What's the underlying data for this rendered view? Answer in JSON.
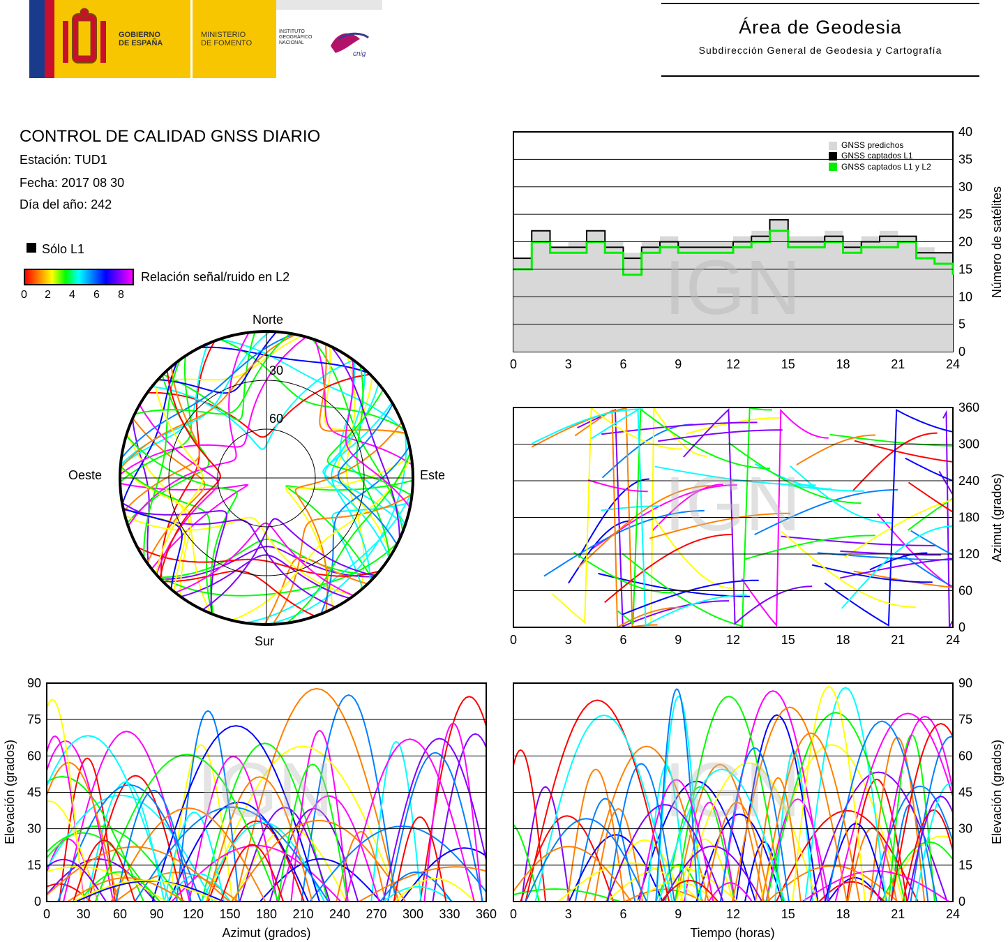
{
  "header": {
    "logo_gobierno": "GOBIERNO\nDE ESPAÑA",
    "logo_ministerio": "MINISTERIO\nDE FOMENTO",
    "logo_instituto": "INSTITUTO\nGEOGRÁFICO\nNACIONAL",
    "logo_cnig": "cnig",
    "area_title": "Área de Geodesia",
    "area_subtitle": "Subdirección General de Geodesia y Cartografía"
  },
  "info": {
    "title": "CONTROL DE CALIDAD GNSS DIARIO",
    "station": "Estación: TUD1",
    "date": "Fecha: 2017 08 30",
    "doy": "Día del año: 242",
    "legend_l1": "Sólo L1",
    "legend_snr": "Relación señal/ruido en L2",
    "snr_ticks": [
      "0",
      "2",
      "4",
      "6",
      "8"
    ]
  },
  "colors": {
    "predicted": "#d8d8d8",
    "l1": "#000000",
    "l1l2": "#00ee00",
    "snr_scale": [
      "#ff0000",
      "#ff8000",
      "#ffff00",
      "#00ff00",
      "#00ffff",
      "#0080ff",
      "#0000ff",
      "#8000ff",
      "#ff00ff"
    ]
  },
  "watermark": "IGN",
  "chart_data": [
    {
      "type": "area",
      "id": "satellites",
      "xlabel": "",
      "ylabel": "Número de satélites",
      "xlim": [
        0,
        24
      ],
      "ylim": [
        0,
        40
      ],
      "x_ticks": [
        "0",
        "3",
        "6",
        "9",
        "12",
        "15",
        "18",
        "21",
        "24"
      ],
      "y_ticks": [
        "0",
        "5",
        "10",
        "15",
        "20",
        "25",
        "30",
        "35",
        "40"
      ],
      "legend": [
        "GNSS predichos",
        "GNSS captados L1",
        "GNSS captados L1 y L2"
      ],
      "legend_position": "top-right",
      "grid": true,
      "series": [
        {
          "name": "GNSS predichos",
          "color": "#d8d8d8",
          "x": [
            0,
            1,
            2,
            3,
            4,
            5,
            6,
            7,
            8,
            9,
            10,
            11,
            12,
            13,
            14,
            15,
            16,
            17,
            18,
            19,
            20,
            21,
            22,
            23,
            24
          ],
          "values": [
            17,
            22,
            19,
            20,
            22,
            20,
            18,
            20,
            21,
            20,
            20,
            20,
            21,
            22,
            24,
            21,
            21,
            22,
            20,
            21,
            22,
            21,
            19,
            18,
            16
          ]
        },
        {
          "name": "GNSS captados L1",
          "color": "#000000",
          "x": [
            0,
            1,
            2,
            3,
            4,
            5,
            6,
            7,
            8,
            9,
            10,
            11,
            12,
            13,
            14,
            15,
            16,
            17,
            18,
            19,
            20,
            21,
            22,
            23,
            24
          ],
          "values": [
            17,
            22,
            19,
            19,
            22,
            19,
            17,
            19,
            20,
            19,
            19,
            19,
            20,
            21,
            24,
            20,
            20,
            21,
            19,
            20,
            21,
            21,
            18,
            18,
            15
          ]
        },
        {
          "name": "GNSS captados L1 y L2",
          "color": "#00ee00",
          "x": [
            0,
            1,
            2,
            3,
            4,
            5,
            6,
            7,
            8,
            9,
            10,
            11,
            12,
            13,
            14,
            15,
            16,
            17,
            18,
            19,
            20,
            21,
            22,
            23,
            24
          ],
          "values": [
            15,
            20,
            18,
            18,
            20,
            18,
            14,
            18,
            19,
            18,
            18,
            18,
            19,
            20,
            22,
            19,
            19,
            20,
            18,
            19,
            19,
            20,
            17,
            16,
            14
          ]
        }
      ]
    },
    {
      "type": "scatter",
      "id": "skyplot",
      "labels": [
        "Norte",
        "Sur",
        "Este",
        "Oeste"
      ],
      "rings": [
        "30",
        "60"
      ],
      "description_axes": "polar azimuth/elevation"
    },
    {
      "type": "scatter",
      "id": "azimuth-time",
      "xlabel": "",
      "ylabel": "Azimut (grados)",
      "xlim": [
        0,
        24
      ],
      "ylim": [
        0,
        360
      ],
      "x_ticks": [
        "0",
        "3",
        "6",
        "9",
        "12",
        "15",
        "18",
        "21",
        "24"
      ],
      "y_ticks": [
        "0",
        "60",
        "120",
        "180",
        "240",
        "300",
        "360"
      ],
      "grid": true
    },
    {
      "type": "scatter",
      "id": "elevation-azimuth",
      "xlabel": "Azimut (grados)",
      "ylabel": "Elevación (grados)",
      "xlim": [
        0,
        360
      ],
      "ylim": [
        0,
        90
      ],
      "x_ticks": [
        "0",
        "30",
        "60",
        "90",
        "120",
        "150",
        "180",
        "210",
        "240",
        "270",
        "300",
        "330",
        "360"
      ],
      "y_ticks": [
        "0",
        "15",
        "30",
        "45",
        "60",
        "75",
        "90"
      ],
      "grid": true
    },
    {
      "type": "line",
      "id": "elevation-time",
      "xlabel": "Tiempo (horas)",
      "ylabel": "Elevación (grados)",
      "xlim": [
        0,
        24
      ],
      "ylim": [
        0,
        90
      ],
      "x_ticks": [
        "0",
        "3",
        "6",
        "9",
        "12",
        "15",
        "18",
        "21",
        "24"
      ],
      "y_ticks": [
        "0",
        "15",
        "30",
        "45",
        "60",
        "75",
        "90"
      ],
      "grid": true
    }
  ]
}
